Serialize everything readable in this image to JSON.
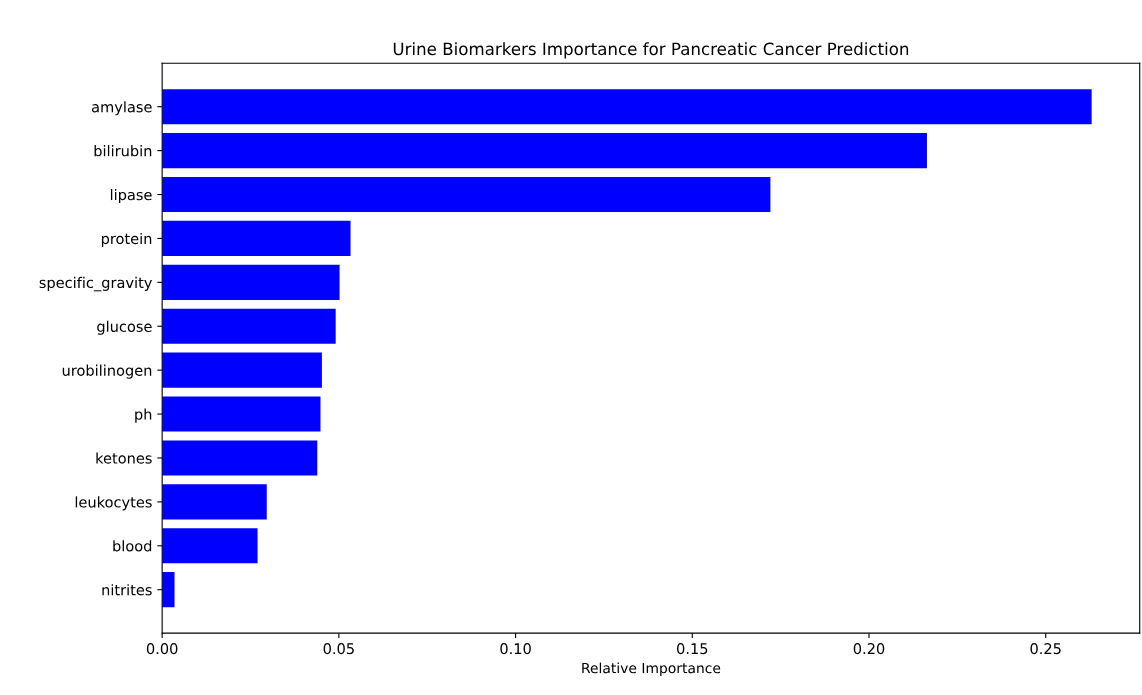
{
  "chart_data": {
    "type": "bar",
    "orientation": "horizontal",
    "title": "Urine Biomarkers Importance for Pancreatic Cancer Prediction",
    "xlabel": "Relative Importance",
    "categories": [
      "amylase",
      "bilirubin",
      "lipase",
      "protein",
      "specific_gravity",
      "glucose",
      "urobilinogen",
      "ph",
      "ketones",
      "leukocytes",
      "blood",
      "nitrites"
    ],
    "values": [
      0.263,
      0.2164,
      0.1721,
      0.0533,
      0.0502,
      0.0491,
      0.0452,
      0.0448,
      0.0439,
      0.0296,
      0.027,
      0.0035
    ],
    "color": "#0000ff",
    "xlim": [
      0,
      0.2766
    ],
    "xticks": [
      {
        "value": 0,
        "label": "0.00"
      },
      0.05,
      {
        "value": 0.1,
        "label": "0.10"
      },
      0.15,
      {
        "value": 0.2,
        "label": "0.20"
      },
      0.25
    ],
    "grid": false
  }
}
